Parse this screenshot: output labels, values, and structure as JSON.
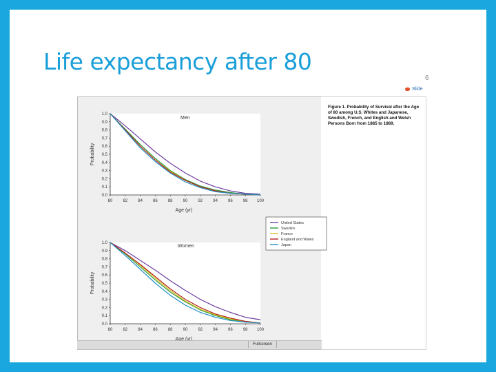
{
  "slide": {
    "title": "Life expectancy after 80",
    "link_label": "Slide",
    "corner_mark": "6"
  },
  "figure_caption": "Figure 1. Probability of Survival after the Age of 80 among U.S. Whites and Japanese, Swedish, French, and English and Welsh Persons Born from 1885 to 1889.",
  "panel": {
    "fullscreen_label": "Fullscreen"
  },
  "colors": {
    "background": "#1aa7e0",
    "title": "#1a9fd9",
    "United States": "#6b3fa0",
    "Sweden": "#2e9a3c",
    "France": "#d9c21a",
    "England and Wales": "#b3201e",
    "Japan": "#1f8fc4"
  },
  "chart_data": [
    {
      "type": "line",
      "title": "Men",
      "xlabel": "Age (yr)",
      "ylabel": "Probability",
      "xlim": [
        80,
        100
      ],
      "ylim": [
        0,
        1.0
      ],
      "x_ticks": [
        "80",
        "82",
        "84",
        "86",
        "88",
        "90",
        "92",
        "94",
        "96",
        "98",
        "100"
      ],
      "y_ticks": [
        "0.0",
        "0.1",
        "0.2",
        "0.3",
        "0.4",
        "0.5",
        "0.6",
        "0.7",
        "0.8",
        "0.9",
        "1.0"
      ],
      "x": [
        80,
        82,
        84,
        86,
        88,
        90,
        92,
        94,
        96,
        98,
        100
      ],
      "series": [
        {
          "name": "United States",
          "values": [
            1.0,
            0.85,
            0.69,
            0.53,
            0.39,
            0.27,
            0.17,
            0.1,
            0.05,
            0.02,
            0.01
          ]
        },
        {
          "name": "Sweden",
          "values": [
            1.0,
            0.81,
            0.62,
            0.45,
            0.3,
            0.19,
            0.11,
            0.06,
            0.03,
            0.01,
            0.0
          ]
        },
        {
          "name": "France",
          "values": [
            1.0,
            0.8,
            0.6,
            0.43,
            0.29,
            0.18,
            0.1,
            0.05,
            0.02,
            0.01,
            0.0
          ]
        },
        {
          "name": "England and Wales",
          "values": [
            1.0,
            0.8,
            0.6,
            0.43,
            0.28,
            0.18,
            0.1,
            0.05,
            0.02,
            0.01,
            0.0
          ]
        },
        {
          "name": "Japan",
          "values": [
            1.0,
            0.79,
            0.58,
            0.41,
            0.27,
            0.16,
            0.09,
            0.04,
            0.02,
            0.01,
            0.0
          ]
        }
      ]
    },
    {
      "type": "line",
      "title": "Women",
      "xlabel": "Age (yr)",
      "ylabel": "Probability",
      "xlim": [
        80,
        100
      ],
      "ylim": [
        0,
        1.0
      ],
      "x_ticks": [
        "80",
        "82",
        "84",
        "86",
        "88",
        "90",
        "92",
        "94",
        "96",
        "98",
        "100"
      ],
      "y_ticks": [
        "0.0",
        "0.1",
        "0.2",
        "0.3",
        "0.4",
        "0.5",
        "0.6",
        "0.7",
        "0.8",
        "0.9",
        "1.0"
      ],
      "x": [
        80,
        82,
        84,
        86,
        88,
        90,
        92,
        94,
        96,
        98,
        100
      ],
      "series": [
        {
          "name": "United States",
          "values": [
            1.0,
            0.9,
            0.78,
            0.66,
            0.53,
            0.41,
            0.3,
            0.21,
            0.14,
            0.08,
            0.05
          ]
        },
        {
          "name": "Sweden",
          "values": [
            1.0,
            0.86,
            0.7,
            0.54,
            0.39,
            0.27,
            0.17,
            0.1,
            0.05,
            0.03,
            0.01
          ]
        },
        {
          "name": "France",
          "values": [
            1.0,
            0.87,
            0.72,
            0.56,
            0.41,
            0.28,
            0.18,
            0.11,
            0.06,
            0.03,
            0.01
          ]
        },
        {
          "name": "England and Wales",
          "values": [
            1.0,
            0.87,
            0.73,
            0.58,
            0.43,
            0.3,
            0.2,
            0.12,
            0.07,
            0.03,
            0.01
          ]
        },
        {
          "name": "Japan",
          "values": [
            1.0,
            0.84,
            0.67,
            0.5,
            0.35,
            0.23,
            0.14,
            0.08,
            0.04,
            0.02,
            0.01
          ]
        }
      ],
      "legend_position": "upper-right"
    }
  ]
}
